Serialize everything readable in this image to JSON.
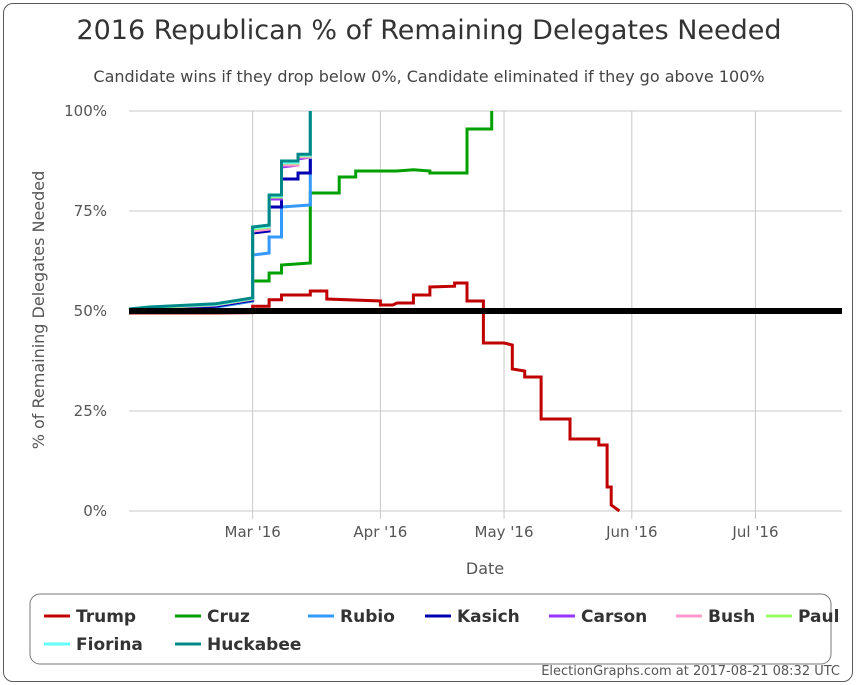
{
  "chart_data": {
    "type": "line",
    "title": "2016 Republican % of Remaining Delegates Needed",
    "subtitle": "Candidate wins if they drop below 0%, Candidate eliminated if they go above 100%",
    "xlabel": "Date",
    "ylabel": "% of Remaining Delegates Needed",
    "x_ticks": [
      "Mar '16",
      "Apr '16",
      "May '16",
      "Jun '16",
      "Jul '16"
    ],
    "y_ticks": [
      "0%",
      "25%",
      "50%",
      "75%",
      "100%"
    ],
    "xlim": [
      "2016-01-31",
      "2016-07-22"
    ],
    "ylim": [
      0,
      100
    ],
    "reference_line": 50,
    "grid": true,
    "legend_position": "bottom",
    "series": [
      {
        "name": "Trump",
        "color": "#c00000",
        "points": [
          [
            "2016-01-31",
            49.5
          ],
          [
            "2016-02-21",
            49.5
          ],
          [
            "2016-03-01",
            49.6
          ],
          [
            "2016-03-01",
            51.2
          ],
          [
            "2016-03-05",
            51.2
          ],
          [
            "2016-03-05",
            52.8
          ],
          [
            "2016-03-08",
            52.8
          ],
          [
            "2016-03-08",
            54.0
          ],
          [
            "2016-03-15",
            54.0
          ],
          [
            "2016-03-15",
            55.0
          ],
          [
            "2016-03-19",
            55.0
          ],
          [
            "2016-03-19",
            53.0
          ],
          [
            "2016-04-01",
            52.5
          ],
          [
            "2016-04-01",
            51.5
          ],
          [
            "2016-04-04",
            51.5
          ],
          [
            "2016-04-05",
            52.0
          ],
          [
            "2016-04-09",
            52.0
          ],
          [
            "2016-04-09",
            54.0
          ],
          [
            "2016-04-13",
            54.0
          ],
          [
            "2016-04-13",
            56.0
          ],
          [
            "2016-04-19",
            56.2
          ],
          [
            "2016-04-19",
            57.0
          ],
          [
            "2016-04-22",
            57.0
          ],
          [
            "2016-04-22",
            52.5
          ],
          [
            "2016-04-26",
            52.5
          ],
          [
            "2016-04-26",
            42.0
          ],
          [
            "2016-05-01",
            42.0
          ],
          [
            "2016-05-03",
            41.5
          ],
          [
            "2016-05-03",
            35.5
          ],
          [
            "2016-05-06",
            35.0
          ],
          [
            "2016-05-06",
            33.5
          ],
          [
            "2016-05-10",
            33.5
          ],
          [
            "2016-05-10",
            23.0
          ],
          [
            "2016-05-17",
            23.0
          ],
          [
            "2016-05-17",
            18.0
          ],
          [
            "2016-05-24",
            18.0
          ],
          [
            "2016-05-24",
            16.5
          ],
          [
            "2016-05-26",
            16.5
          ],
          [
            "2016-05-26",
            6.0
          ],
          [
            "2016-05-27",
            6.0
          ],
          [
            "2016-05-27",
            1.5
          ],
          [
            "2016-05-29",
            0.0
          ]
        ]
      },
      {
        "name": "Cruz",
        "color": "#00a000",
        "points": [
          [
            "2016-01-31",
            50.0
          ],
          [
            "2016-02-05",
            50.5
          ],
          [
            "2016-02-21",
            51.0
          ],
          [
            "2016-02-27",
            52.0
          ],
          [
            "2016-03-01",
            52.5
          ],
          [
            "2016-03-01",
            57.5
          ],
          [
            "2016-03-05",
            57.5
          ],
          [
            "2016-03-05",
            59.5
          ],
          [
            "2016-03-08",
            59.5
          ],
          [
            "2016-03-08",
            61.5
          ],
          [
            "2016-03-15",
            62.0
          ],
          [
            "2016-03-15",
            79.5
          ],
          [
            "2016-03-22",
            79.5
          ],
          [
            "2016-03-22",
            83.5
          ],
          [
            "2016-03-26",
            83.5
          ],
          [
            "2016-03-26",
            85.0
          ],
          [
            "2016-04-05",
            85.0
          ],
          [
            "2016-04-09",
            85.3
          ],
          [
            "2016-04-13",
            85.0
          ],
          [
            "2016-04-13",
            84.5
          ],
          [
            "2016-04-22",
            84.5
          ],
          [
            "2016-04-22",
            95.5
          ],
          [
            "2016-04-28",
            95.5
          ],
          [
            "2016-04-28",
            100.0
          ]
        ]
      },
      {
        "name": "Rubio",
        "color": "#3399ff",
        "points": [
          [
            "2016-01-31",
            50.0
          ],
          [
            "2016-02-05",
            50.5
          ],
          [
            "2016-02-21",
            51.0
          ],
          [
            "2016-02-27",
            52.0
          ],
          [
            "2016-03-01",
            52.5
          ],
          [
            "2016-03-01",
            64.0
          ],
          [
            "2016-03-05",
            64.5
          ],
          [
            "2016-03-05",
            68.5
          ],
          [
            "2016-03-08",
            68.5
          ],
          [
            "2016-03-08",
            76.0
          ],
          [
            "2016-03-15",
            76.5
          ],
          [
            "2016-03-15",
            100.0
          ]
        ]
      },
      {
        "name": "Kasich",
        "color": "#0000b0",
        "points": [
          [
            "2016-01-31",
            50.2
          ],
          [
            "2016-02-05",
            50.6
          ],
          [
            "2016-02-21",
            51.2
          ],
          [
            "2016-02-27",
            52.2
          ],
          [
            "2016-03-01",
            52.7
          ],
          [
            "2016-03-01",
            69.5
          ],
          [
            "2016-03-05",
            70.0
          ],
          [
            "2016-03-05",
            76.0
          ],
          [
            "2016-03-08",
            76.0
          ],
          [
            "2016-03-08",
            83.0
          ],
          [
            "2016-03-12",
            83.0
          ],
          [
            "2016-03-12",
            84.5
          ],
          [
            "2016-03-15",
            84.5
          ],
          [
            "2016-03-15",
            88.0
          ]
        ]
      },
      {
        "name": "Carson",
        "color": "#9933ff",
        "points": [
          [
            "2016-01-31",
            50.3
          ],
          [
            "2016-02-05",
            50.8
          ],
          [
            "2016-02-21",
            51.5
          ],
          [
            "2016-02-27",
            52.5
          ],
          [
            "2016-03-01",
            53.0
          ],
          [
            "2016-03-01",
            70.0
          ],
          [
            "2016-03-05",
            70.5
          ],
          [
            "2016-03-05",
            78.0
          ],
          [
            "2016-03-08",
            78.0
          ],
          [
            "2016-03-08",
            86.0
          ],
          [
            "2016-03-12",
            86.5
          ],
          [
            "2016-03-12",
            88.0
          ],
          [
            "2016-03-15",
            88.5
          ],
          [
            "2016-03-15",
            100.0
          ]
        ]
      },
      {
        "name": "Bush",
        "color": "#ff99cc",
        "points": [
          [
            "2016-01-31",
            50.3
          ],
          [
            "2016-02-05",
            50.8
          ],
          [
            "2016-02-21",
            51.5
          ],
          [
            "2016-02-27",
            52.5
          ],
          [
            "2016-03-01",
            53.0
          ],
          [
            "2016-03-01",
            70.0
          ],
          [
            "2016-03-05",
            70.5
          ],
          [
            "2016-03-05",
            78.5
          ],
          [
            "2016-03-08",
            78.5
          ],
          [
            "2016-03-08",
            86.5
          ],
          [
            "2016-03-12",
            86.5
          ],
          [
            "2016-03-12",
            88.5
          ],
          [
            "2016-03-15",
            88.5
          ],
          [
            "2016-03-15",
            100.0
          ]
        ]
      },
      {
        "name": "Paul",
        "color": "#99ff66",
        "points": [
          [
            "2016-01-31",
            50.4
          ],
          [
            "2016-02-05",
            50.9
          ],
          [
            "2016-02-21",
            51.6
          ],
          [
            "2016-02-27",
            52.6
          ],
          [
            "2016-03-01",
            53.1
          ],
          [
            "2016-03-01",
            70.5
          ],
          [
            "2016-03-05",
            71.0
          ],
          [
            "2016-03-05",
            78.5
          ],
          [
            "2016-03-08",
            78.5
          ],
          [
            "2016-03-08",
            87.0
          ],
          [
            "2016-03-12",
            87.0
          ],
          [
            "2016-03-12",
            88.8
          ],
          [
            "2016-03-15",
            88.8
          ],
          [
            "2016-03-15",
            100.0
          ]
        ]
      },
      {
        "name": "Fiorina",
        "color": "#66ffff",
        "points": [
          [
            "2016-01-31",
            50.5
          ],
          [
            "2016-02-05",
            51.0
          ],
          [
            "2016-02-21",
            51.7
          ],
          [
            "2016-02-27",
            52.7
          ],
          [
            "2016-03-01",
            53.2
          ],
          [
            "2016-03-01",
            70.8
          ],
          [
            "2016-03-05",
            71.2
          ],
          [
            "2016-03-05",
            78.8
          ],
          [
            "2016-03-08",
            78.8
          ],
          [
            "2016-03-08",
            87.2
          ],
          [
            "2016-03-12",
            87.2
          ],
          [
            "2016-03-12",
            89.0
          ],
          [
            "2016-03-15",
            89.0
          ],
          [
            "2016-03-15",
            100.0
          ]
        ]
      },
      {
        "name": "Huckabee",
        "color": "#008888",
        "points": [
          [
            "2016-01-31",
            50.5
          ],
          [
            "2016-02-05",
            51.0
          ],
          [
            "2016-02-21",
            51.8
          ],
          [
            "2016-02-27",
            52.8
          ],
          [
            "2016-03-01",
            53.3
          ],
          [
            "2016-03-01",
            71.0
          ],
          [
            "2016-03-05",
            71.5
          ],
          [
            "2016-03-05",
            79.0
          ],
          [
            "2016-03-08",
            79.0
          ],
          [
            "2016-03-08",
            87.5
          ],
          [
            "2016-03-12",
            87.5
          ],
          [
            "2016-03-12",
            89.2
          ],
          [
            "2016-03-15",
            89.2
          ],
          [
            "2016-03-15",
            100.0
          ]
        ]
      }
    ]
  },
  "credit": "ElectionGraphs.com at 2017-08-21 08:32 UTC"
}
